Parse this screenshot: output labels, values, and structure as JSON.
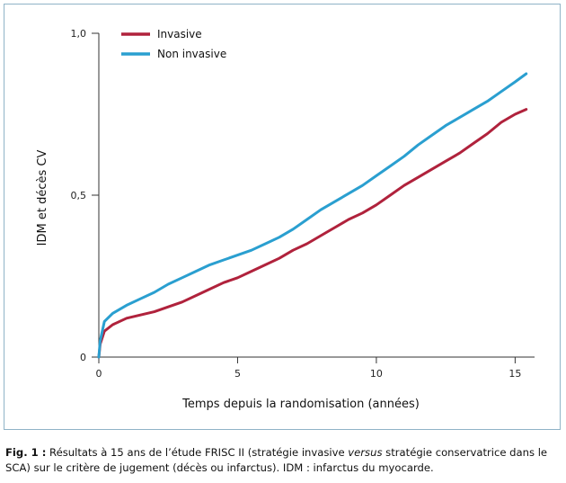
{
  "chart_data": {
    "type": "line",
    "title": "",
    "xlabel": "Temps depuis la randomisation (années)",
    "ylabel": "IDM et décès CV",
    "xlim": [
      0,
      15.7
    ],
    "ylim": [
      0,
      1.0
    ],
    "x_ticks": [
      0,
      5,
      10,
      15
    ],
    "x_tick_labels": [
      "0",
      "5",
      "10",
      "15"
    ],
    "y_ticks": [
      0,
      0.5,
      1.0
    ],
    "y_tick_labels": [
      "0",
      "0,5",
      "1,0"
    ],
    "grid": false,
    "legend_position": "top-left",
    "series": [
      {
        "name": "Invasive",
        "color": "#b0223c",
        "x": [
          0,
          0.05,
          0.2,
          0.5,
          1,
          1.5,
          2,
          2.5,
          3,
          3.5,
          4,
          4.5,
          5,
          5.5,
          6,
          6.5,
          7,
          7.5,
          8,
          8.5,
          9,
          9.5,
          10,
          10.5,
          11,
          11.5,
          12,
          12.5,
          13,
          13.5,
          14,
          14.5,
          15,
          15.4
        ],
        "y": [
          0,
          0.04,
          0.08,
          0.1,
          0.12,
          0.13,
          0.14,
          0.155,
          0.17,
          0.19,
          0.21,
          0.23,
          0.245,
          0.265,
          0.285,
          0.305,
          0.33,
          0.35,
          0.375,
          0.4,
          0.425,
          0.445,
          0.47,
          0.5,
          0.53,
          0.555,
          0.58,
          0.605,
          0.63,
          0.66,
          0.69,
          0.725,
          0.75,
          0.765
        ]
      },
      {
        "name": "Non invasive",
        "color": "#2a9fd0",
        "x": [
          0,
          0.05,
          0.2,
          0.5,
          1,
          1.5,
          2,
          2.5,
          3,
          3.5,
          4,
          4.5,
          5,
          5.5,
          6,
          6.5,
          7,
          7.5,
          8,
          8.5,
          9,
          9.5,
          10,
          10.5,
          11,
          11.5,
          12,
          12.5,
          13,
          13.5,
          14,
          14.5,
          15,
          15.4
        ],
        "y": [
          0,
          0.05,
          0.11,
          0.135,
          0.16,
          0.18,
          0.2,
          0.225,
          0.245,
          0.265,
          0.285,
          0.3,
          0.315,
          0.33,
          0.35,
          0.37,
          0.395,
          0.425,
          0.455,
          0.48,
          0.505,
          0.53,
          0.56,
          0.59,
          0.62,
          0.655,
          0.685,
          0.715,
          0.74,
          0.765,
          0.79,
          0.82,
          0.85,
          0.875
        ]
      }
    ]
  },
  "caption": {
    "fig_label": "Fig. 1 :",
    "text_1": " Résultats à 15 ans de l’étude FRISC II (stratégie invasive ",
    "text_em": "versus",
    "text_2": " stratégie conservatrice dans le SCA) sur le critère de jugement (décès ou infarctus). IDM : infarctus du myocarde."
  }
}
